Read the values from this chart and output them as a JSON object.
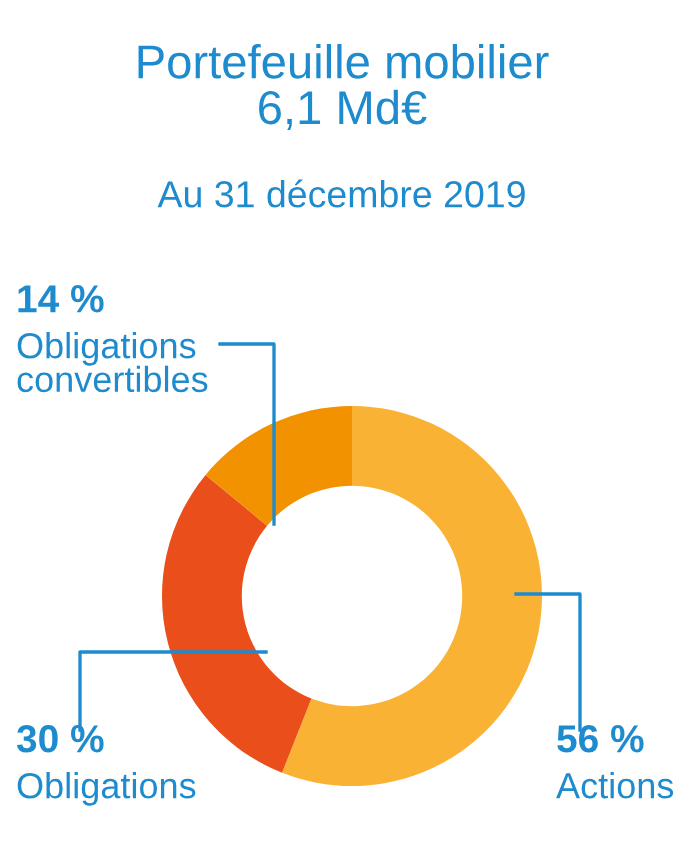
{
  "chart_data": {
    "type": "donut",
    "title": "Portefeuille mobilier\n6,1 Md€",
    "subtitle": "Au 31 décembre 2019",
    "categories": [
      "Actions",
      "Obligations",
      "Obligations\nconvertibles"
    ],
    "values": [
      56,
      30,
      14
    ],
    "value_labels": [
      "56 %",
      "30 %",
      "14 %"
    ],
    "colors": [
      "#f9b233",
      "#e94e1b",
      "#f39200"
    ],
    "legend": false
  }
}
